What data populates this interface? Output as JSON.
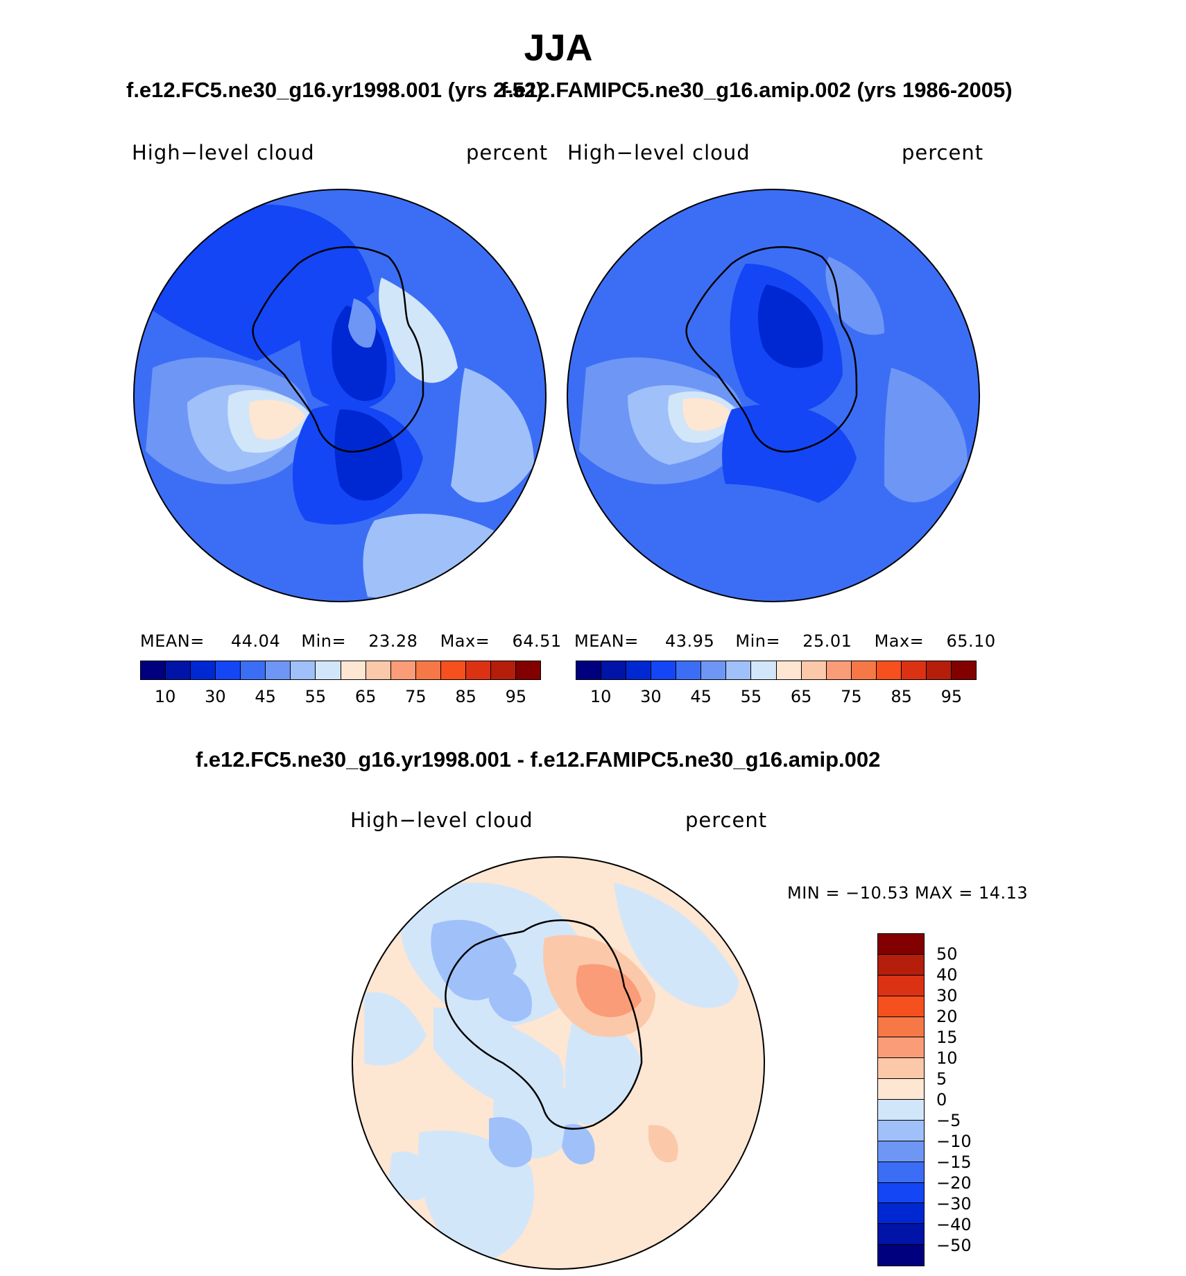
{
  "title": "JJA",
  "panels": [
    {
      "case_title": "f.e12.FC5.ne30_g16.yr1998.001 (yrs 2-52)",
      "left_label": "High−level cloud",
      "right_label": "percent",
      "stats": {
        "mean_label": "MEAN=",
        "mean": "44.04",
        "min_label": "Min=",
        "min": "23.28",
        "max_label": "Max=",
        "max": "64.51"
      }
    },
    {
      "case_title": "f.e12.FAMIPC5.ne30_g16.amip.002 (yrs 1986-2005)",
      "left_label": "High−level cloud",
      "right_label": "percent",
      "stats": {
        "mean_label": "MEAN=",
        "mean": "43.95",
        "min_label": "Min=",
        "min": "25.01",
        "max_label": "Max=",
        "max": "65.10"
      }
    }
  ],
  "colorbar": {
    "colors": [
      "#00007f",
      "#0014a8",
      "#0028d2",
      "#1446f5",
      "#3c6ef5",
      "#6e96f5",
      "#a0c0fa",
      "#d2e6fa",
      "#fde6d2",
      "#fcc8aa",
      "#fa9c78",
      "#f57846",
      "#f5501e",
      "#dc3214",
      "#b41e0a",
      "#820000"
    ],
    "tick_labels": [
      "10",
      "30",
      "45",
      "55",
      "65",
      "75",
      "85",
      "95"
    ]
  },
  "diff": {
    "title": "f.e12.FC5.ne30_g16.yr1998.001 - f.e12.FAMIPC5.ne30_g16.amip.002",
    "left_label": "High−level cloud",
    "right_label": "percent",
    "minmax": "MIN = −10.53 MAX =  14.13",
    "colorbar": {
      "colors": [
        "#820000",
        "#b41e0a",
        "#dc3214",
        "#f5501e",
        "#f57846",
        "#fa9c78",
        "#fcc8aa",
        "#fde6d2",
        "#d2e6fa",
        "#a0c0fa",
        "#6e96f5",
        "#3c6ef5",
        "#1446f5",
        "#0028d2",
        "#0014a8",
        "#00007f"
      ],
      "labels": [
        "50",
        "40",
        "30",
        "20",
        "15",
        "10",
        "5",
        "0",
        "−5",
        "−10",
        "−15",
        "−20",
        "−30",
        "−40",
        "−50"
      ]
    }
  }
}
